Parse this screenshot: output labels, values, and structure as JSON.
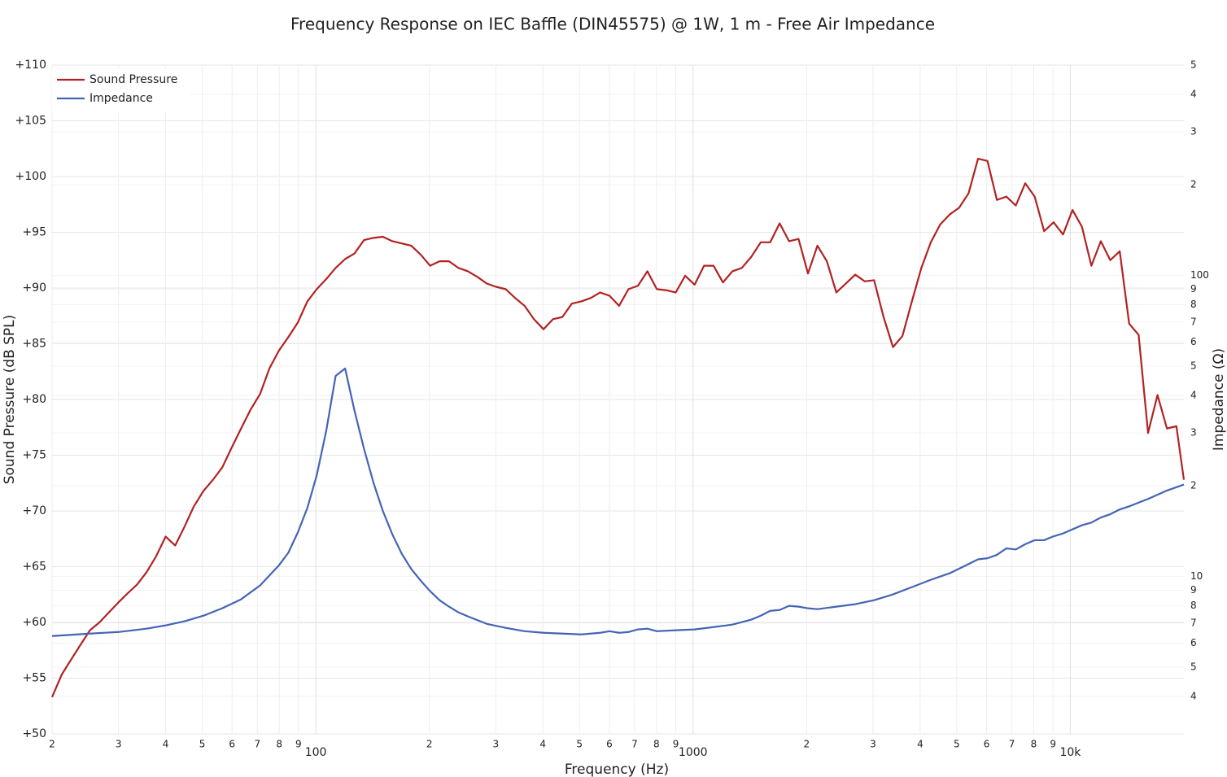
{
  "chart_data": {
    "type": "line",
    "title": "Frequency Response on IEC Baffle (DIN45575) @ 1W, 1 m - Free Air Impedance",
    "x_label": "Frequency (Hz)",
    "y_label": "Sound Pressure (dB SPL)",
    "y2_label": "Impedance (Ω)",
    "xscale": "log",
    "y2scale": "log",
    "grid": true,
    "legend_position": "top-left",
    "xlim": [
      20,
      20000
    ],
    "ylim": [
      50,
      110
    ],
    "y2lim": [
      3,
      500
    ],
    "xticks": [
      {
        "value": 20,
        "label": "2"
      },
      {
        "value": 30,
        "label": "3"
      },
      {
        "value": 40,
        "label": "4"
      },
      {
        "value": 50,
        "label": "5"
      },
      {
        "value": 60,
        "label": "6"
      },
      {
        "value": 70,
        "label": "7"
      },
      {
        "value": 80,
        "label": "8"
      },
      {
        "value": 90,
        "label": "9"
      },
      100,
      {
        "value": 200,
        "label": "2"
      },
      {
        "value": 300,
        "label": "3"
      },
      {
        "value": 400,
        "label": "4"
      },
      {
        "value": 500,
        "label": "5"
      },
      {
        "value": 600,
        "label": "6"
      },
      {
        "value": 700,
        "label": "7"
      },
      {
        "value": 800,
        "label": "8"
      },
      {
        "value": 900,
        "label": "9"
      },
      1000,
      {
        "value": 2000,
        "label": "2"
      },
      {
        "value": 3000,
        "label": "3"
      },
      {
        "value": 4000,
        "label": "4"
      },
      {
        "value": 5000,
        "label": "5"
      },
      {
        "value": 6000,
        "label": "6"
      },
      {
        "value": 7000,
        "label": "7"
      },
      {
        "value": 8000,
        "label": "8"
      },
      {
        "value": 9000,
        "label": "9"
      },
      {
        "value": 10000,
        "label": "10k"
      }
    ],
    "yticks": [
      {
        "value": 50,
        "label": "+50"
      },
      {
        "value": 55,
        "label": "+55"
      },
      {
        "value": 60,
        "label": "+60"
      },
      {
        "value": 65,
        "label": "+65"
      },
      {
        "value": 70,
        "label": "+70"
      },
      {
        "value": 75,
        "label": "+75"
      },
      {
        "value": 80,
        "label": "+80"
      },
      {
        "value": 85,
        "label": "+85"
      },
      {
        "value": 90,
        "label": "+90"
      },
      {
        "value": 95,
        "label": "+95"
      },
      {
        "value": 100,
        "label": "+100"
      },
      {
        "value": 105,
        "label": "+105"
      },
      {
        "value": 110,
        "label": "+110"
      }
    ],
    "y2ticks": [
      {
        "value": 500,
        "label": "5"
      },
      {
        "value": 400,
        "label": "4"
      },
      {
        "value": 300,
        "label": "3"
      },
      {
        "value": 200,
        "label": "2"
      },
      100,
      {
        "value": 90,
        "label": "9"
      },
      {
        "value": 80,
        "label": "8"
      },
      {
        "value": 70,
        "label": "7"
      },
      {
        "value": 60,
        "label": "6"
      },
      {
        "value": 50,
        "label": "5"
      },
      {
        "value": 40,
        "label": "4"
      },
      {
        "value": 30,
        "label": "3"
      },
      {
        "value": 20,
        "label": "2"
      },
      10,
      9,
      8,
      7,
      6,
      5,
      4
    ],
    "series": [
      {
        "name": "Sound Pressure",
        "color": "#b22222",
        "x": [
          20,
          21.2,
          22.4,
          23.8,
          25.2,
          26.7,
          28.3,
          30,
          31.7,
          33.6,
          35.6,
          37.7,
          40,
          42.4,
          44.9,
          47.5,
          50.4,
          53.4,
          56.5,
          59.9,
          63.4,
          67.2,
          71.2,
          75.4,
          79.9,
          84.6,
          89.6,
          95,
          100.6,
          106.6,
          112.9,
          119.6,
          126.7,
          134.2,
          142.2,
          150.6,
          159.6,
          169,
          179,
          189.7,
          200.9,
          212.9,
          225.5,
          238.9,
          253.1,
          268.1,
          284,
          300.9,
          318.7,
          337.7,
          357.7,
          378.9,
          401.4,
          425.2,
          450.5,
          477.2,
          505.5,
          535.5,
          567.3,
          601,
          636.6,
          674.4,
          714.4,
          756.8,
          801.8,
          849.3,
          899.7,
          953.1,
          1009.7,
          1069.6,
          1133.1,
          1200.3,
          1271.6,
          1347,
          1427,
          1511.7,
          1601.4,
          1696.4,
          1797.1,
          1903.8,
          2016.8,
          2136.5,
          2263.3,
          2397.6,
          2539.9,
          2690.6,
          2850.3,
          3019.5,
          3198.7,
          3388.6,
          3589.7,
          3802.7,
          4028.4,
          4267.6,
          4520.8,
          4789.2,
          5073.4,
          5374.5,
          5693.5,
          6031.4,
          6389.4,
          6768.6,
          7170.3,
          7595.8,
          8046.6,
          8524.2,
          9030.1,
          9566,
          10133.8,
          10735.2,
          11372.3,
          12047.3,
          12762.3,
          13519.7,
          14322.1,
          15172.1,
          16072.6,
          17026.5,
          18037,
          19107.5,
          20000
        ],
        "values": [
          53.3,
          55.3,
          56.6,
          58.0,
          59.3,
          60.0,
          60.9,
          61.8,
          62.6,
          63.4,
          64.5,
          65.9,
          67.7,
          66.9,
          68.6,
          70.4,
          71.8,
          72.8,
          73.9,
          75.7,
          77.4,
          79.1,
          80.5,
          82.8,
          84.4,
          85.6,
          86.9,
          88.8,
          89.9,
          90.8,
          91.8,
          92.6,
          93.1,
          94.3,
          94.5,
          94.6,
          94.2,
          94.0,
          93.8,
          93.0,
          92.0,
          92.4,
          92.4,
          91.8,
          91.5,
          91.0,
          90.4,
          90.1,
          89.9,
          89.1,
          88.4,
          87.2,
          86.3,
          87.2,
          87.4,
          88.6,
          88.8,
          89.1,
          89.6,
          89.3,
          88.4,
          89.9,
          90.2,
          91.5,
          89.9,
          89.8,
          89.6,
          91.1,
          90.3,
          92.0,
          92.0,
          90.5,
          91.5,
          91.8,
          92.8,
          94.1,
          94.1,
          95.8,
          94.2,
          94.4,
          91.3,
          93.8,
          92.4,
          89.6,
          90.4,
          91.2,
          90.6,
          90.7,
          87.4,
          84.7,
          85.7,
          88.8,
          91.8,
          94.1,
          95.7,
          96.6,
          97.2,
          98.5,
          101.6,
          101.4,
          97.9,
          98.2,
          97.4,
          99.4,
          98.2,
          95.1,
          95.9,
          94.8,
          97.0,
          95.5,
          92.0,
          94.2,
          92.5,
          93.3,
          86.8,
          85.8,
          77.0,
          80.4,
          77.4,
          77.6,
          72.8
        ]
      },
      {
        "name": "Impedance",
        "color": "#4464b4",
        "axis": "y2",
        "x": [
          20,
          25.2,
          30,
          35.6,
          40,
          44.9,
          50.4,
          56.5,
          63.4,
          71.2,
          79.9,
          84.6,
          89.6,
          95,
          100.6,
          106.6,
          112.9,
          119.6,
          126.7,
          134.2,
          142.2,
          150.6,
          159.6,
          169,
          179,
          189.7,
          200.9,
          212.9,
          225.5,
          238.9,
          253.1,
          284,
          318.7,
          357.7,
          401.4,
          450.5,
          505.5,
          567.3,
          601,
          636.6,
          674.4,
          714.4,
          756.8,
          801.8,
          899.7,
          1009.7,
          1133.1,
          1271.6,
          1427,
          1511.7,
          1601.4,
          1696.4,
          1797.1,
          1903.8,
          2016.8,
          2136.5,
          2397.6,
          2690.6,
          3019.5,
          3388.6,
          3802.7,
          4267.6,
          4789.2,
          5374.5,
          5693.5,
          6031.4,
          6389.4,
          6768.6,
          7170.3,
          7595.8,
          8046.6,
          8524.2,
          9030.1,
          9566,
          10735.2,
          11372.3,
          12047.3,
          12762.3,
          13519.7,
          14322.1,
          16072.6,
          18037,
          20000
        ],
        "values": [
          6.34,
          6.46,
          6.54,
          6.71,
          6.88,
          7.1,
          7.41,
          7.84,
          8.4,
          9.34,
          10.9,
          12.0,
          14.0,
          16.9,
          21.7,
          30.5,
          46.4,
          49.1,
          35.5,
          26.6,
          20.5,
          16.5,
          13.8,
          11.9,
          10.6,
          9.69,
          8.94,
          8.34,
          7.94,
          7.6,
          7.37,
          6.96,
          6.75,
          6.58,
          6.5,
          6.46,
          6.42,
          6.5,
          6.58,
          6.5,
          6.54,
          6.67,
          6.71,
          6.58,
          6.63,
          6.67,
          6.79,
          6.92,
          7.19,
          7.41,
          7.69,
          7.74,
          7.99,
          7.94,
          7.84,
          7.79,
          7.94,
          8.09,
          8.34,
          8.72,
          9.22,
          9.75,
          10.25,
          11.0,
          11.4,
          11.5,
          11.8,
          12.4,
          12.3,
          12.8,
          13.2,
          13.2,
          13.6,
          13.9,
          14.8,
          15.1,
          15.7,
          16.1,
          16.7,
          17.1,
          18.1,
          19.3,
          20.2
        ]
      }
    ]
  }
}
